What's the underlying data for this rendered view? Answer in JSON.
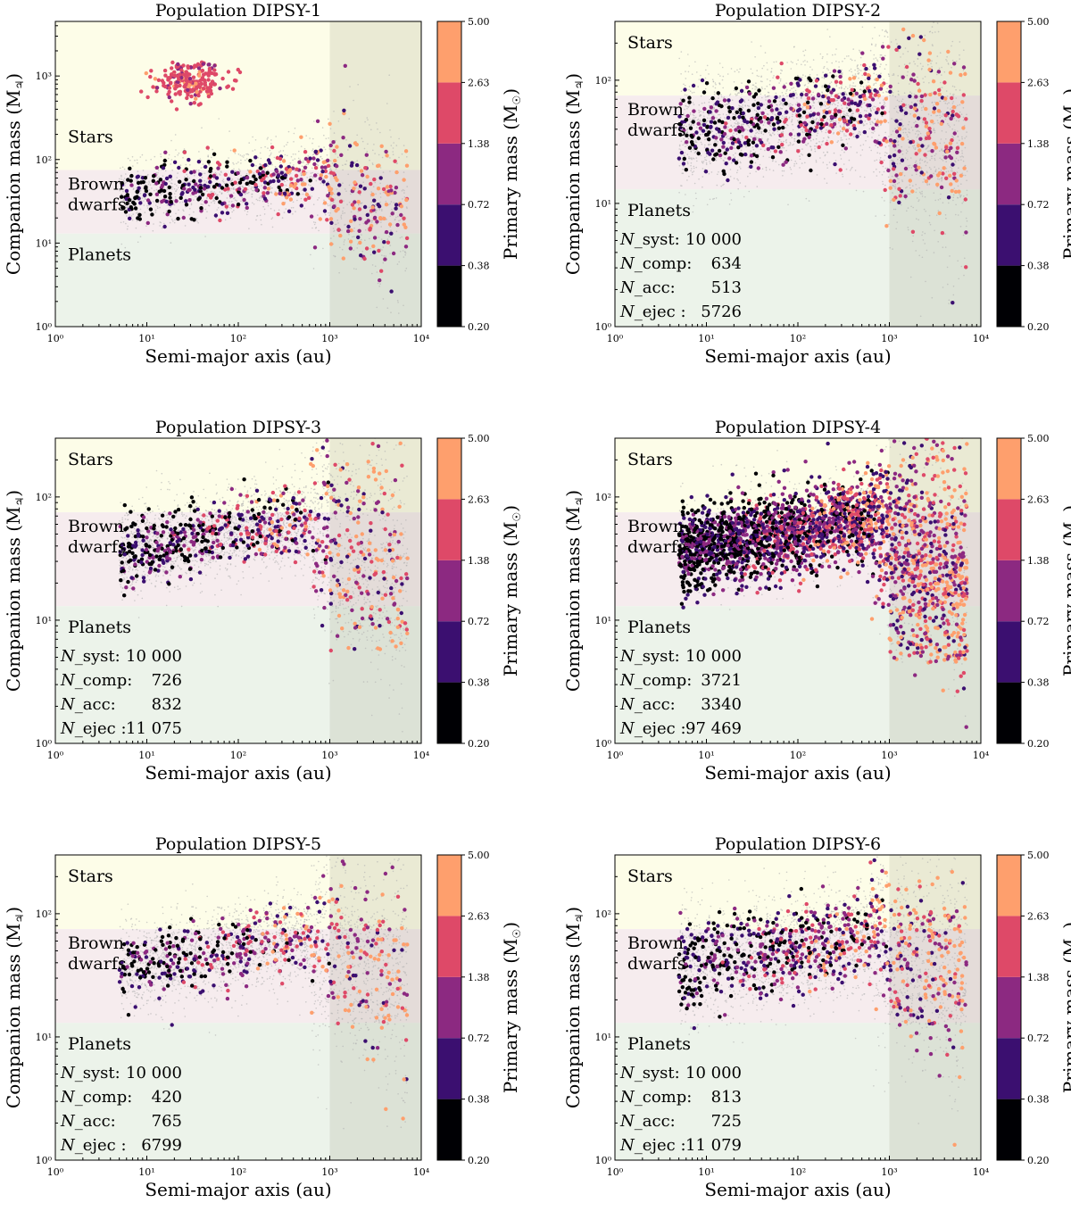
{
  "figure": {
    "colorbar_label": "Primary mass (M",
    "colorbar_label_sub": "☉",
    "colorbar_label_end": ")",
    "ylabel": "Companion mass (M",
    "ylabel_sub": "♃",
    "ylabel_end": ")",
    "xlabel": "Semi-major axis (au)",
    "region_labels": {
      "stars": "Stars",
      "brown_dwarfs_1": "Brown",
      "brown_dwarfs_2": "dwarfs",
      "planets": "Planets"
    },
    "stat_labels": [
      "N_syst:",
      "N_comp:",
      "N_acc:",
      "N_ejec :"
    ],
    "x_ticks": [
      "10⁰",
      "10¹",
      "10²",
      "10³",
      "10⁴"
    ],
    "colorbar_ticks": [
      "5.00",
      "2.63",
      "1.38",
      "0.72",
      "0.38",
      "0.20"
    ],
    "colors": {
      "stars_bg": "#fdfde8",
      "bd_bg": "#f6ecee",
      "planets_bg": "#ecf3ea",
      "shade": "#8a8a70",
      "grey_points": "#b0b0b0",
      "colorbar": [
        "#000004",
        "#3b0f70",
        "#8c2981",
        "#de4968",
        "#fe9f6d"
      ]
    }
  },
  "chart_data": [
    {
      "type": "scatter",
      "title": "Population DIPSY-1",
      "xlim": [
        1,
        10000
      ],
      "ylim": [
        1,
        4500
      ],
      "y_ticks": [
        "10⁰",
        "10¹",
        "10²",
        "10³"
      ],
      "stats": null,
      "star_clump": true,
      "grey_density": 0.5,
      "colored_count": 520,
      "inner_spread": 0.5,
      "outer_low": 1.6
    },
    {
      "type": "scatter",
      "title": "Population DIPSY-2",
      "xlim": [
        1,
        10000
      ],
      "ylim": [
        1,
        300
      ],
      "y_ticks": [
        "10⁰",
        "10¹",
        "10²"
      ],
      "stats": [
        "10 000",
        "634",
        "513",
        "5726"
      ],
      "star_clump": false,
      "grey_density": 1.0,
      "colored_count": 634,
      "inner_spread": 0.5,
      "outer_low": 2
    },
    {
      "type": "scatter",
      "title": "Population DIPSY-3",
      "xlim": [
        1,
        10000
      ],
      "ylim": [
        1,
        300
      ],
      "y_ticks": [
        "10⁰",
        "10¹",
        "10²"
      ],
      "stats": [
        "10 000",
        "726",
        "832",
        "11 075"
      ],
      "star_clump": false,
      "grey_density": 1.0,
      "colored_count": 726,
      "inner_spread": 0.4,
      "outer_low": 1.5
    },
    {
      "type": "scatter",
      "title": "Population DIPSY-4",
      "xlim": [
        1,
        10000
      ],
      "ylim": [
        1,
        300
      ],
      "y_ticks": [
        "10⁰",
        "10¹",
        "10²"
      ],
      "stats": [
        "10 000",
        "3721",
        "3340",
        "97 469"
      ],
      "star_clump": false,
      "grey_density": 0.4,
      "colored_count": 2600,
      "inner_spread": 0.5,
      "outer_low": 1.3
    },
    {
      "type": "scatter",
      "title": "Population DIPSY-5",
      "xlim": [
        1,
        10000
      ],
      "ylim": [
        1,
        300
      ],
      "y_ticks": [
        "10⁰",
        "10¹",
        "10²"
      ],
      "stats": [
        "10 000",
        "420",
        "765",
        "6799"
      ],
      "star_clump": false,
      "grey_density": 1.0,
      "colored_count": 520,
      "inner_spread": 0.4,
      "outer_low": 2.2
    },
    {
      "type": "scatter",
      "title": "Population DIPSY-6",
      "xlim": [
        1,
        10000
      ],
      "ylim": [
        1,
        300
      ],
      "y_ticks": [
        "10⁰",
        "10¹",
        "10²"
      ],
      "stats": [
        "10 000",
        "813",
        "725",
        "11 079"
      ],
      "star_clump": false,
      "grey_density": 1.0,
      "colored_count": 813,
      "inner_spread": 0.5,
      "outer_low": 2.2
    }
  ]
}
